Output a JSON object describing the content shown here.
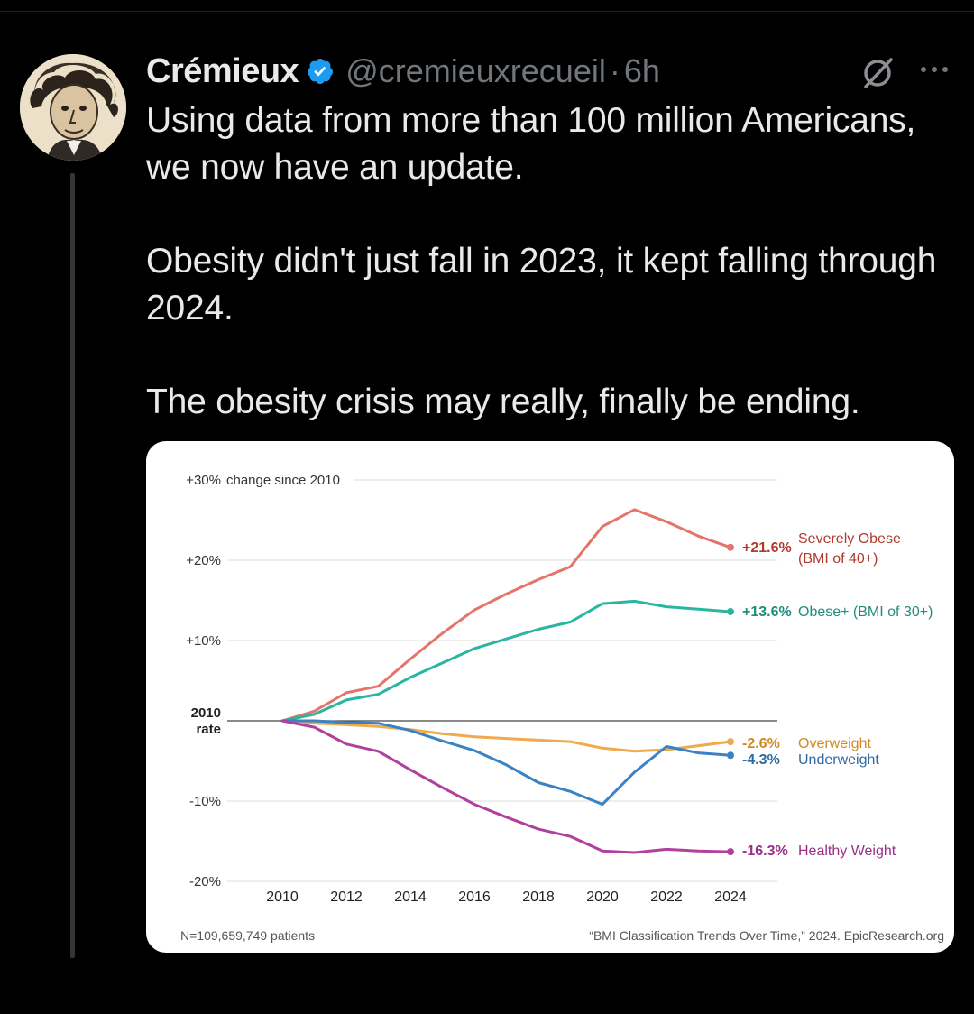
{
  "tweet": {
    "display_name": "Crémieux",
    "handle": "@cremieuxrecueil",
    "separator": "·",
    "time": "6h",
    "verified": true,
    "paragraphs": [
      "Using data from more than 100 million Americans, we now have an update.",
      "Obesity didn't just fall in 2023, it kept falling through 2024.",
      "The obesity crisis may really, finally be ending."
    ]
  },
  "icons": {
    "verified": "verified-badge-icon",
    "grok": "grok-icon",
    "more": "more-options-icon",
    "avatar": "avatar-image"
  },
  "colors": {
    "background": "#000000",
    "text": "#e7e9ea",
    "secondary_text": "#71767b",
    "verified": "#1d9bf0"
  },
  "chart_data": {
    "type": "line",
    "title": "change since 2010",
    "x": [
      2010,
      2011,
      2012,
      2013,
      2014,
      2015,
      2016,
      2017,
      2018,
      2019,
      2020,
      2021,
      2022,
      2023,
      2024
    ],
    "x_ticks": [
      2010,
      2012,
      2014,
      2016,
      2018,
      2020,
      2022,
      2024
    ],
    "x_tick_labels": [
      "2010",
      "2012",
      "2014",
      "2016",
      "2018",
      "2020",
      "2022",
      "2024"
    ],
    "y_ticks": [
      30,
      20,
      10,
      0,
      -10,
      -20
    ],
    "y_tick_labels": [
      "+30%",
      "+20%",
      "+10%",
      "2010\nrate",
      "-10%",
      "-20%"
    ],
    "y_top_label": "+30%",
    "baseline_label": [
      "2010",
      "rate"
    ],
    "ylim": [
      -20,
      30
    ],
    "xlim": [
      2010,
      2024
    ],
    "series": [
      {
        "name": "Severely Obese",
        "label_value": "+21.6%",
        "label_text": [
          "Severely Obese",
          "(BMI of 40+)"
        ],
        "color": "#e5746a",
        "value_color": "#b03a2e",
        "values": [
          0,
          1.2,
          3.5,
          4.3,
          7.7,
          10.9,
          13.8,
          15.8,
          17.6,
          19.2,
          24.2,
          26.3,
          24.8,
          23.0,
          21.6
        ]
      },
      {
        "name": "Obese+",
        "label_value": "+13.6%",
        "label_text": [
          "Obese+ (BMI of 30+)"
        ],
        "color": "#2bb5a0",
        "value_color": "#1f8e7d",
        "values": [
          0,
          0.8,
          2.6,
          3.3,
          5.4,
          7.2,
          9.0,
          10.2,
          11.4,
          12.3,
          14.6,
          14.9,
          14.2,
          13.9,
          13.6
        ]
      },
      {
        "name": "Overweight",
        "label_value": "-2.6%",
        "label_text": [
          "Overweight"
        ],
        "color": "#f0a94c",
        "value_color": "#d08a24",
        "values": [
          0,
          -0.3,
          -0.5,
          -0.7,
          -1.1,
          -1.6,
          -2.0,
          -2.2,
          -2.4,
          -2.6,
          -3.4,
          -3.8,
          -3.6,
          -3.1,
          -2.6
        ]
      },
      {
        "name": "Underweight",
        "label_value": "-4.3%",
        "label_text": [
          "Underweight"
        ],
        "color": "#3b82c4",
        "value_color": "#2f6aa3",
        "values": [
          0,
          0,
          -0.2,
          -0.3,
          -1.2,
          -2.5,
          -3.7,
          -5.5,
          -7.7,
          -8.8,
          -10.4,
          -6.4,
          -3.2,
          -4.0,
          -4.3
        ]
      },
      {
        "name": "Healthy Weight",
        "label_value": "-16.3%",
        "label_text": [
          "Healthy Weight"
        ],
        "color": "#b0409e",
        "value_color": "#9a2f88",
        "values": [
          0,
          -0.8,
          -2.9,
          -3.8,
          -6.1,
          -8.3,
          -10.4,
          -12.0,
          -13.5,
          -14.4,
          -16.2,
          -16.4,
          -16.0,
          -16.2,
          -16.3
        ]
      }
    ],
    "footer_left": "N=109,659,749 patients",
    "footer_right": "“BMI Classification Trends Over Time,” 2024. EpicResearch.org"
  }
}
